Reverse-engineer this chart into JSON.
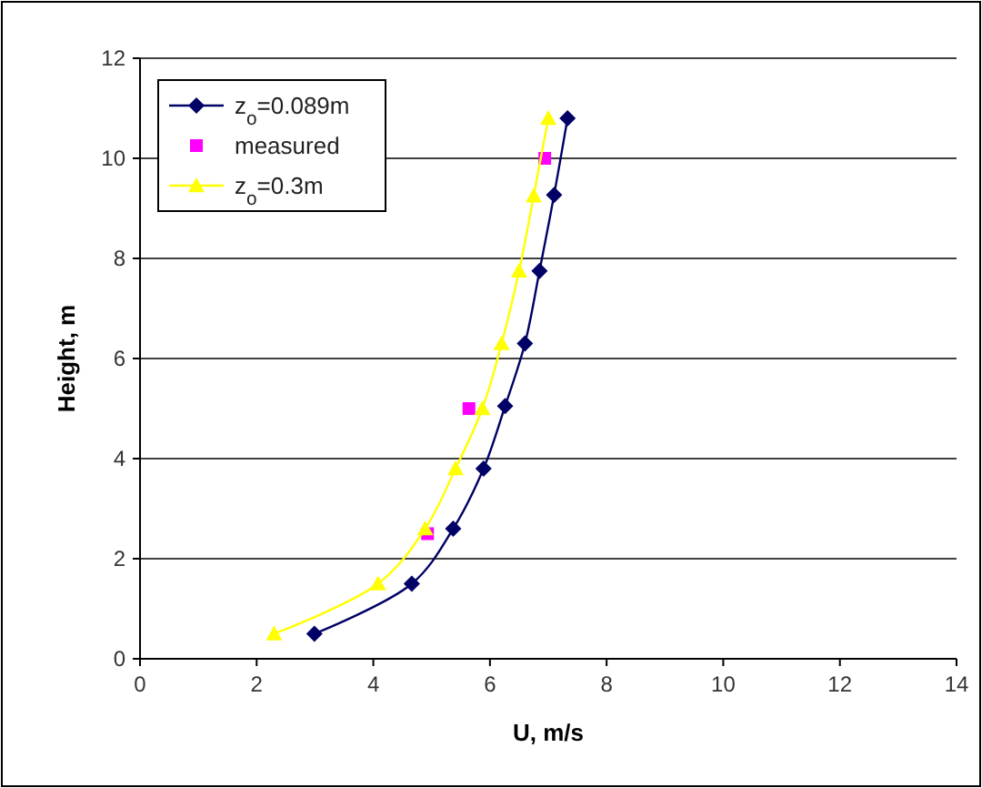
{
  "chart_data": {
    "type": "line",
    "xlabel": "U, m/s",
    "ylabel": "Height, m",
    "xlim": [
      0,
      14
    ],
    "xticks": [
      0,
      2,
      4,
      6,
      8,
      10,
      12,
      14
    ],
    "ylim": [
      0,
      12
    ],
    "yticks": [
      0,
      2,
      4,
      6,
      8,
      10,
      12
    ],
    "grid": "y",
    "legend": "top left",
    "series": [
      {
        "name": "z$_{o}$=0.089m",
        "color": "#000066",
        "marker": "diamond",
        "x": [
          2.99,
          4.66,
          5.37,
          5.89,
          6.26,
          6.6,
          6.85,
          7.1,
          7.33
        ],
        "values": [
          0.5,
          1.5,
          2.6,
          3.8,
          5.05,
          6.3,
          7.75,
          9.27,
          10.8
        ]
      },
      {
        "name": "measured",
        "type": "scatter",
        "color": "#ff00ff",
        "marker": "square",
        "x": [
          4.93,
          5.64,
          6.94
        ],
        "values": [
          2.5,
          5.0,
          10.0
        ]
      },
      {
        "name": "z$_{o}$=0.3m",
        "color": "#ffff00",
        "marker": "triangle",
        "x": [
          2.3,
          4.08,
          4.89,
          5.41,
          5.87,
          6.2,
          6.5,
          6.75,
          7.0
        ],
        "values": [
          0.5,
          1.5,
          2.6,
          3.8,
          5.0,
          6.3,
          7.75,
          9.25,
          10.8
        ]
      }
    ]
  }
}
